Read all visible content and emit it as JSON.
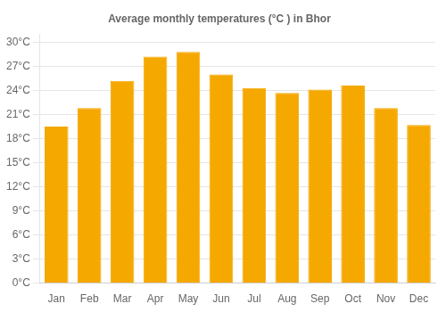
{
  "chart_data": {
    "type": "bar",
    "title": "Average monthly temperatures (°C ) in Bhor",
    "categories": [
      "Jan",
      "Feb",
      "Mar",
      "Apr",
      "May",
      "Jun",
      "Jul",
      "Aug",
      "Sep",
      "Oct",
      "Nov",
      "Dec"
    ],
    "values": [
      19.5,
      21.8,
      25.2,
      28.2,
      28.8,
      26.0,
      24.3,
      23.7,
      24.1,
      24.6,
      21.8,
      19.7
    ],
    "color": "#F5A800",
    "ylim": [
      0,
      31
    ],
    "yticks": [
      {
        "value": 0,
        "label": "0°C"
      },
      {
        "value": 3,
        "label": "3°C"
      },
      {
        "value": 6,
        "label": "6°C"
      },
      {
        "value": 9,
        "label": "9°C"
      },
      {
        "value": 12,
        "label": "12°C"
      },
      {
        "value": 15,
        "label": "15°C"
      },
      {
        "value": 18,
        "label": "18°C"
      },
      {
        "value": 21,
        "label": "21°C"
      },
      {
        "value": 24,
        "label": "24°C"
      },
      {
        "value": 27,
        "label": "27°C"
      },
      {
        "value": 30,
        "label": "30°C"
      }
    ],
    "grid": true
  }
}
